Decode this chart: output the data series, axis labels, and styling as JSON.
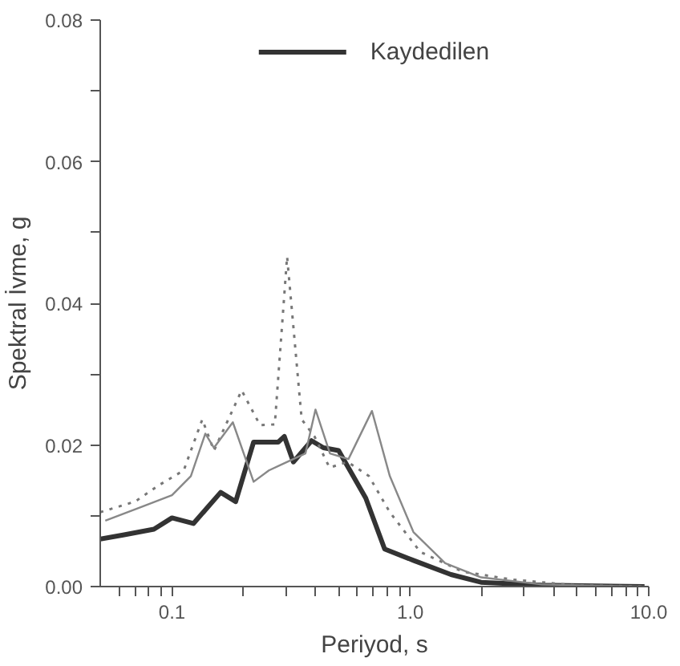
{
  "chart_data": {
    "type": "line",
    "xlabel": "Periyod, s",
    "ylabel": "Spektral İvme, g",
    "log": "x",
    "grid": false,
    "legend": "top",
    "xlim": [
      0.05,
      10
    ],
    "ylim": [
      0,
      0.08
    ],
    "xticks": [
      {
        "value": 0.06,
        "label": null
      },
      {
        "value": 0.07,
        "label": null
      },
      {
        "value": 0.08,
        "label": null
      },
      {
        "value": 0.09,
        "label": null
      },
      {
        "value": 0.1,
        "label": "0.1"
      },
      {
        "value": 0.2,
        "label": null
      },
      {
        "value": 0.3,
        "label": null
      },
      {
        "value": 0.4,
        "label": null
      },
      {
        "value": 0.5,
        "label": null
      },
      {
        "value": 0.6,
        "label": null
      },
      {
        "value": 0.7,
        "label": null
      },
      {
        "value": 0.8,
        "label": null
      },
      {
        "value": 0.9,
        "label": null
      },
      {
        "value": 1,
        "label": "1.0"
      },
      {
        "value": 2,
        "label": null
      },
      {
        "value": 3,
        "label": null
      },
      {
        "value": 4,
        "label": null
      },
      {
        "value": 5,
        "label": null
      },
      {
        "value": 6,
        "label": null
      },
      {
        "value": 7,
        "label": null
      },
      {
        "value": 8,
        "label": null
      },
      {
        "value": 9,
        "label": null
      },
      {
        "value": 10,
        "label": "10.0"
      }
    ],
    "yticks": [
      {
        "value": 0,
        "label": "0.00"
      },
      {
        "value": 0.01,
        "label": null
      },
      {
        "value": 0.02,
        "label": "0.02"
      },
      {
        "value": 0.03,
        "label": null
      },
      {
        "value": 0.04,
        "label": "0.04"
      },
      {
        "value": 0.05,
        "label": null
      },
      {
        "value": 0.06,
        "label": "0.06"
      },
      {
        "value": 0.07,
        "label": null
      },
      {
        "value": 0.08,
        "label": "0.08"
      }
    ],
    "series": [
      {
        "name": "Kaydedilen",
        "color": "#333333",
        "line_style": "solid",
        "x": [
          0.05,
          0.063,
          0.084,
          0.1,
          0.123,
          0.16,
          0.185,
          0.22,
          0.279,
          0.296,
          0.323,
          0.385,
          0.432,
          0.5,
          0.65,
          0.78,
          1.03,
          1.48,
          1.98,
          3.56,
          9.6
        ],
        "values": [
          0.0067,
          0.0073,
          0.0081,
          0.0097,
          0.0089,
          0.0133,
          0.012,
          0.0204,
          0.0204,
          0.0212,
          0.0176,
          0.0206,
          0.0196,
          0.0192,
          0.0125,
          0.0053,
          0.0037,
          0.0017,
          0.0006,
          0.0002,
          0
        ]
      },
      {
        "color": "#777777",
        "line_style": "dotted",
        "x": [
          0.05,
          0.07,
          0.089,
          0.112,
          0.134,
          0.15,
          0.196,
          0.234,
          0.27,
          0.304,
          0.35,
          0.396,
          0.458,
          0.546,
          0.67,
          0.82,
          1.1,
          1.66,
          2.66,
          4.8,
          9.6
        ],
        "values": [
          0.0105,
          0.012,
          0.0144,
          0.0164,
          0.0236,
          0.0192,
          0.0277,
          0.0228,
          0.0229,
          0.0466,
          0.0236,
          0.0212,
          0.0168,
          0.0176,
          0.0156,
          0.0105,
          0.0049,
          0.0021,
          0.001,
          0.0002,
          0
        ]
      },
      {
        "color": "#888888",
        "line_style": "solid",
        "x": [
          0.0525,
          0.075,
          0.1,
          0.12,
          0.138,
          0.15,
          0.18,
          0.22,
          0.255,
          0.287,
          0.363,
          0.4,
          0.46,
          0.55,
          0.69,
          0.82,
          1.03,
          1.4,
          1.98,
          3.56,
          9.6
        ],
        "values": [
          0.0093,
          0.0113,
          0.0129,
          0.0156,
          0.0216,
          0.0196,
          0.0232,
          0.0148,
          0.0164,
          0.0172,
          0.0188,
          0.025,
          0.0188,
          0.018,
          0.0248,
          0.0156,
          0.0077,
          0.0033,
          0.0013,
          0.0003,
          0
        ]
      }
    ]
  }
}
